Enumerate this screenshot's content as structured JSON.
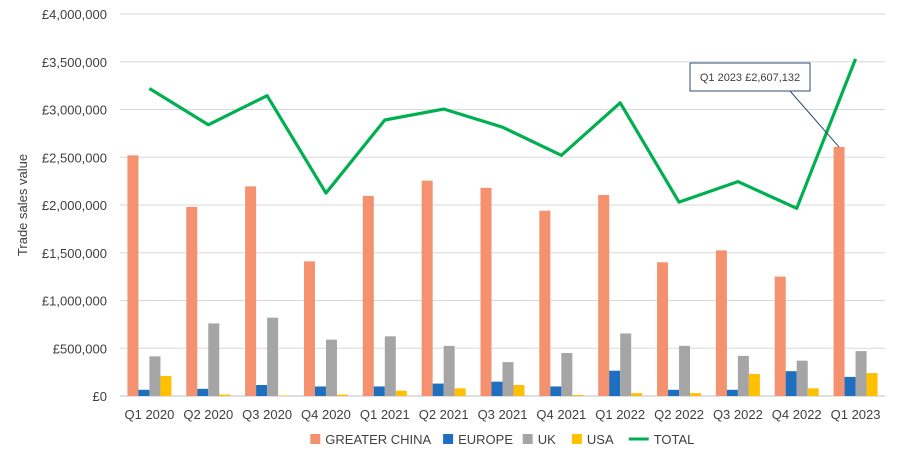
{
  "chart_data": {
    "type": "bar",
    "categories": [
      "Q1 2020",
      "Q2 2020",
      "Q3 2020",
      "Q4 2020",
      "Q1 2021",
      "Q2 2021",
      "Q3 2021",
      "Q4 2021",
      "Q1 2022",
      "Q2 2022",
      "Q3 2022",
      "Q4 2022",
      "Q1 2023"
    ],
    "series": [
      {
        "name": "GREATER CHINA",
        "type": "bar",
        "color": "#F4916F",
        "values": [
          2520000,
          1980000,
          2195000,
          1410000,
          2095000,
          2255000,
          2180000,
          1940000,
          2105000,
          1400000,
          1525000,
          1250000,
          2607132
        ]
      },
      {
        "name": "EUROPE",
        "type": "bar",
        "color": "#1F6FBF",
        "values": [
          65000,
          75000,
          115000,
          100000,
          100000,
          130000,
          150000,
          100000,
          265000,
          65000,
          65000,
          260000,
          200000
        ]
      },
      {
        "name": "UK",
        "type": "bar",
        "color": "#A5A5A5",
        "values": [
          415000,
          760000,
          820000,
          590000,
          625000,
          525000,
          355000,
          450000,
          655000,
          525000,
          420000,
          370000,
          470000
        ]
      },
      {
        "name": "USA",
        "type": "bar",
        "color": "#FFC000",
        "values": [
          210000,
          15000,
          5000,
          15000,
          55000,
          80000,
          115000,
          10000,
          30000,
          30000,
          230000,
          80000,
          240000
        ]
      },
      {
        "name": "TOTAL",
        "type": "line",
        "color": "#00B050",
        "values": [
          3220000,
          2840000,
          3145000,
          2125000,
          2890000,
          3005000,
          2815000,
          2520000,
          3070000,
          2030000,
          2245000,
          1965000,
          3530000
        ]
      }
    ],
    "ylabel": "Trade sales value",
    "xlabel": "",
    "ylim": [
      0,
      4000000
    ],
    "yticks": [
      "£0",
      "£500,000",
      "£1,000,000",
      "£1,500,000",
      "£2,000,000",
      "£2,500,000",
      "£3,000,000",
      "£3,500,000",
      "£4,000,000"
    ],
    "grid": true,
    "legend_position": "bottom",
    "annotation": {
      "text": "Q1 2023 £2,607,132",
      "category": "Q1 2023",
      "series": "GREATER CHINA",
      "value": 2607132
    }
  }
}
